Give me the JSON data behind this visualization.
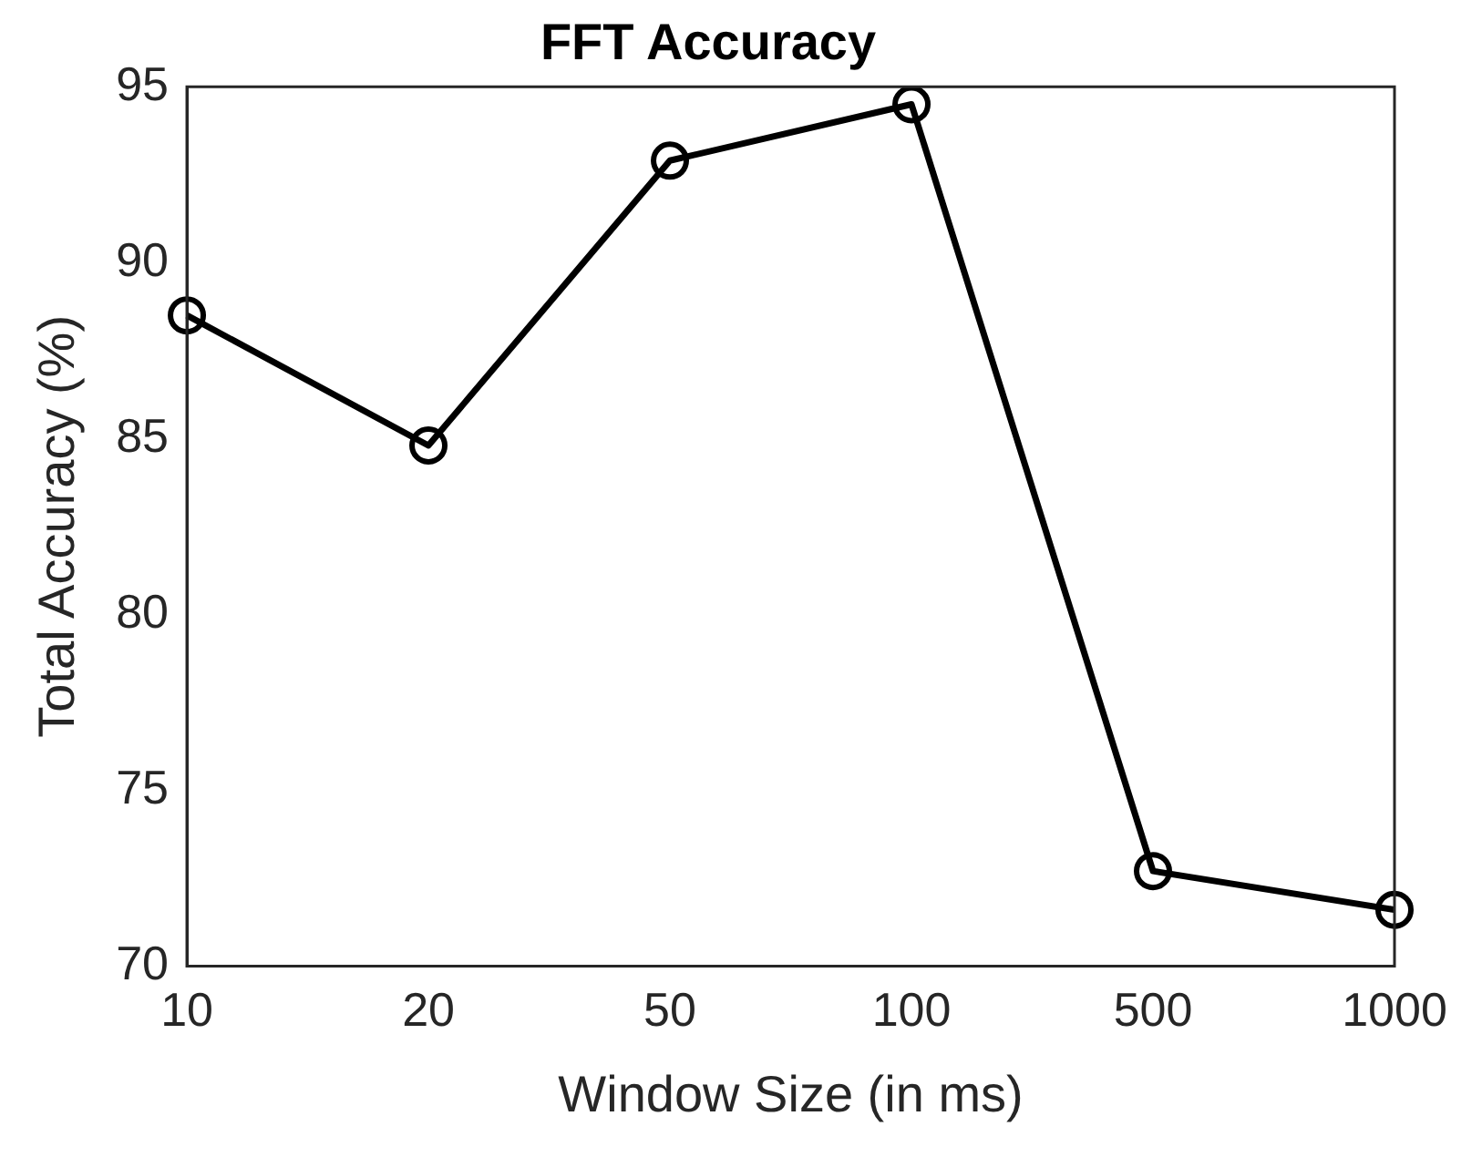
{
  "chart_data": {
    "type": "line",
    "title": "FFT Accuracy",
    "xlabel": "Window Size (in ms)",
    "ylabel": "Total Accuracy (%)",
    "categories": [
      "10",
      "20",
      "50",
      "100",
      "500",
      "1000"
    ],
    "series": [
      {
        "color": "#000000",
        "values": [
          88.5,
          84.8,
          92.9,
          94.5,
          72.7,
          71.6
        ]
      }
    ],
    "ylim": [
      70,
      95
    ],
    "yticks": [
      70,
      75,
      80,
      85,
      90,
      95
    ],
    "grid": false,
    "legend": false,
    "marker": "circle",
    "line_style": "solid"
  }
}
